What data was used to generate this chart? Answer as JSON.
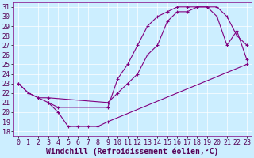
{
  "xlabel": "Windchill (Refroidissement éolien,°C)",
  "background_color": "#cceeff",
  "line_color": "#800080",
  "xlim": [
    -0.5,
    23.5
  ],
  "ylim": [
    17.5,
    31.5
  ],
  "xticks": [
    0,
    1,
    2,
    3,
    4,
    5,
    6,
    7,
    8,
    9,
    10,
    11,
    12,
    13,
    14,
    15,
    16,
    17,
    18,
    19,
    20,
    21,
    22,
    23
  ],
  "yticks": [
    18,
    19,
    20,
    21,
    22,
    23,
    24,
    25,
    26,
    27,
    28,
    29,
    30,
    31
  ],
  "line1_x": [
    0,
    1,
    2,
    3,
    4,
    5,
    6,
    7,
    8,
    9,
    23
  ],
  "line1_y": [
    23,
    22,
    21.5,
    21,
    20,
    18.5,
    18.5,
    18.5,
    18.5,
    19,
    25
  ],
  "line2_x": [
    0,
    1,
    2,
    3,
    9,
    10,
    11,
    12,
    13,
    14,
    15,
    16,
    17,
    18,
    19,
    20,
    21,
    22,
    23
  ],
  "line2_y": [
    23,
    22,
    21.5,
    21.5,
    21,
    22,
    23,
    24,
    26,
    27,
    29.5,
    30.5,
    30.5,
    31,
    31,
    31,
    30,
    28,
    27
  ],
  "line3_x": [
    3,
    4,
    9,
    10,
    11,
    12,
    13,
    14,
    15,
    16,
    17,
    18,
    19,
    20,
    21,
    22,
    23
  ],
  "line3_y": [
    21,
    20.5,
    20.5,
    23.5,
    25,
    27,
    29,
    30,
    30.5,
    31,
    31,
    31,
    31,
    30,
    27,
    28.5,
    25.5
  ],
  "marker": "+",
  "markersize": 3,
  "linewidth": 0.8,
  "tick_fontsize": 6,
  "xlabel_fontsize": 7
}
